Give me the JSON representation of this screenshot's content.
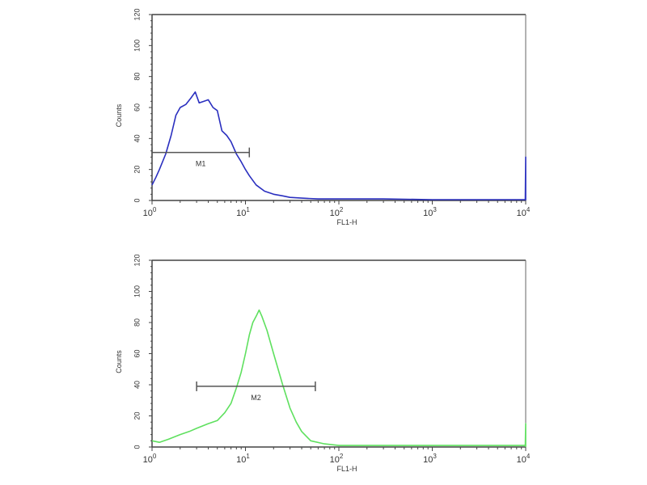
{
  "chart_data": [
    {
      "type": "line",
      "xlabel": "FL1-H",
      "ylabel": "Counts",
      "xscale": "log",
      "xlim": [
        1,
        10000
      ],
      "ylim": [
        0,
        120
      ],
      "xticks": [
        {
          "b": "10",
          "e": "0"
        },
        {
          "b": "10",
          "e": "1"
        },
        {
          "b": "10",
          "e": "2"
        },
        {
          "b": "10",
          "e": "3"
        },
        {
          "b": "10",
          "e": "4"
        }
      ],
      "yticks": [
        "0",
        "20",
        "40",
        "60",
        "80",
        "100",
        "120"
      ],
      "color": "#2a2fbf",
      "series": [
        {
          "x": [
            1,
            1.1,
            1.2,
            1.4,
            1.6,
            1.8,
            2,
            2.3,
            2.6,
            2.9,
            3.2,
            3.6,
            4,
            4.5,
            5,
            5.6,
            6.3,
            7,
            8,
            9,
            10,
            11,
            13,
            16,
            20,
            25,
            30,
            40,
            60,
            100,
            300,
            1000,
            3000,
            9900,
            10000,
            10000
          ],
          "y": [
            10,
            15,
            20,
            30,
            42,
            55,
            60,
            62,
            66,
            70,
            63,
            64,
            65,
            60,
            58,
            45,
            42,
            38,
            30,
            25,
            20,
            16,
            10,
            6,
            4,
            3,
            2,
            1.5,
            1,
            1,
            1,
            0.5,
            0.5,
            0.5,
            28,
            0
          ]
        }
      ],
      "marker": {
        "label": "M1",
        "x_range": [
          1,
          11
        ],
        "y": 31
      }
    },
    {
      "type": "line",
      "xlabel": "FL1-H",
      "ylabel": "Counts",
      "xscale": "log",
      "xlim": [
        1,
        10000
      ],
      "ylim": [
        0,
        120
      ],
      "xticks": [
        {
          "b": "10",
          "e": "0"
        },
        {
          "b": "10",
          "e": "1"
        },
        {
          "b": "10",
          "e": "2"
        },
        {
          "b": "10",
          "e": "3"
        },
        {
          "b": "10",
          "e": "4"
        }
      ],
      "yticks": [
        "0",
        "20",
        "40",
        "60",
        "80",
        "100",
        "120"
      ],
      "color": "#5fe05f",
      "series": [
        {
          "x": [
            1,
            1.2,
            1.5,
            2,
            2.5,
            3,
            4,
            5,
            6,
            7,
            8,
            9,
            10,
            11,
            12,
            13,
            14,
            15,
            17,
            20,
            25,
            30,
            35,
            40,
            50,
            70,
            100,
            300,
            1000,
            3000,
            9900,
            10000,
            10000
          ],
          "y": [
            4,
            3,
            5,
            8,
            10,
            12,
            15,
            17,
            22,
            28,
            38,
            48,
            60,
            72,
            80,
            84,
            88,
            84,
            75,
            60,
            40,
            25,
            16,
            10,
            4,
            2,
            1,
            1,
            1,
            1,
            1,
            15,
            0
          ]
        }
      ],
      "marker": {
        "label": "M2",
        "x_range": [
          3,
          56
        ],
        "y": 39
      }
    }
  ]
}
